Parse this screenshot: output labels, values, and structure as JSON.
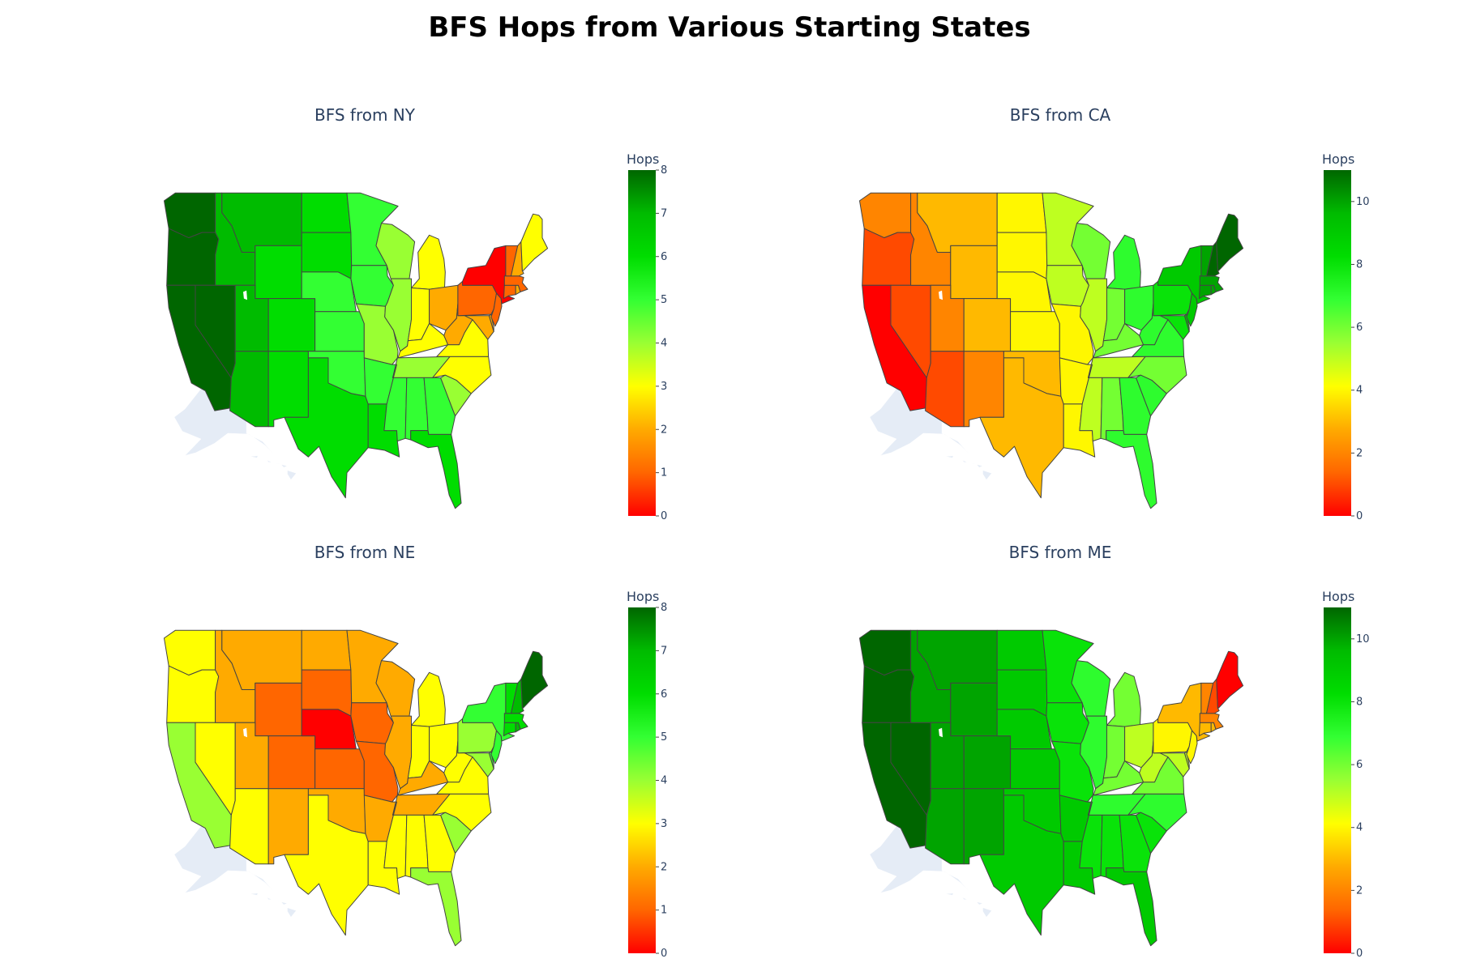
{
  "title": "BFS Hops from Various Starting States",
  "colorscale": [
    [
      0,
      "#ff0000"
    ],
    [
      0.125,
      "#ff6600"
    ],
    [
      0.25,
      "#ffaa00"
    ],
    [
      0.375,
      "#ffff00"
    ],
    [
      0.5,
      "#99ff33"
    ],
    [
      0.625,
      "#33ff33"
    ],
    [
      0.75,
      "#00dd00"
    ],
    [
      0.875,
      "#00bb00"
    ],
    [
      1,
      "#006600"
    ]
  ],
  "chart_data": [
    {
      "type": "choropleth",
      "title": "BFS from NY",
      "start": "NY",
      "colorbar": {
        "title": "Hops",
        "range": [
          0,
          8
        ],
        "ticks": [
          "0",
          "1",
          "2",
          "3",
          "4",
          "5",
          "6",
          "7",
          "8"
        ]
      },
      "values": {
        "WA": 8,
        "OR": 8,
        "CA": 8,
        "NV": 8,
        "ID": 7,
        "MT": 7,
        "WY": 6,
        "UT": 7,
        "AZ": 7,
        "CO": 6,
        "NM": 6,
        "ND": 6,
        "SD": 6,
        "NE": 5,
        "KS": 5,
        "OK": 5,
        "TX": 6,
        "MN": 5,
        "IA": 5,
        "MO": 4,
        "AR": 5,
        "LA": 6,
        "WI": 4,
        "IL": 4,
        "MI": 3,
        "IN": 3,
        "OH": 2,
        "KY": 3,
        "TN": 4,
        "MS": 5,
        "AL": 5,
        "GA": 5,
        "FL": 6,
        "SC": 4,
        "NC": 3,
        "VA": 3,
        "WV": 2,
        "PA": 1,
        "NY": 0,
        "NJ": 1,
        "DE": 2,
        "MD": 2,
        "CT": 1,
        "RI": 2,
        "MA": 1,
        "VT": 1,
        "NH": 2,
        "ME": 3
      }
    },
    {
      "type": "choropleth",
      "title": "BFS from CA",
      "start": "CA",
      "colorbar": {
        "title": "Hops",
        "range": [
          0,
          11
        ],
        "ticks": [
          "0",
          "2",
          "4",
          "6",
          "8",
          "10"
        ]
      },
      "values": {
        "CA": 0,
        "OR": 1,
        "NV": 1,
        "AZ": 1,
        "WA": 2,
        "ID": 2,
        "UT": 2,
        "NM": 2,
        "MT": 3,
        "WY": 3,
        "CO": 3,
        "OK": 3,
        "TX": 3,
        "ND": 4,
        "SD": 4,
        "NE": 4,
        "KS": 4,
        "MN": 5,
        "IA": 5,
        "MO": 4,
        "AR": 4,
        "LA": 4,
        "WI": 6,
        "IL": 5,
        "MS": 5,
        "TN": 5,
        "KY": 6,
        "IN": 6,
        "MI": 7,
        "OH": 7,
        "AL": 6,
        "GA": 7,
        "FL": 7,
        "SC": 7,
        "NC": 6,
        "VA": 7,
        "WV": 7,
        "PA": 8,
        "MD": 8,
        "DE": 9,
        "NJ": 9,
        "NY": 9,
        "CT": 10,
        "RI": 10,
        "MA": 10,
        "VT": 10,
        "NH": 11,
        "ME": 11
      }
    },
    {
      "type": "choropleth",
      "title": "BFS from NE",
      "start": "NE",
      "colorbar": {
        "title": "Hops",
        "range": [
          0,
          8
        ],
        "ticks": [
          "0",
          "1",
          "2",
          "3",
          "4",
          "5",
          "6",
          "7",
          "8"
        ]
      },
      "values": {
        "NE": 0,
        "SD": 1,
        "WY": 1,
        "CO": 1,
        "KS": 1,
        "IA": 1,
        "MO": 1,
        "ND": 2,
        "MT": 2,
        "ID": 2,
        "UT": 2,
        "NM": 2,
        "OK": 2,
        "AR": 2,
        "MN": 2,
        "WI": 2,
        "IL": 2,
        "KY": 2,
        "TN": 2,
        "WA": 3,
        "OR": 3,
        "NV": 3,
        "AZ": 3,
        "TX": 3,
        "LA": 3,
        "MS": 3,
        "AL": 3,
        "GA": 3,
        "IN": 3,
        "MI": 3,
        "OH": 3,
        "WV": 3,
        "VA": 3,
        "NC": 3,
        "CA": 4,
        "SC": 4,
        "FL": 4,
        "PA": 4,
        "MD": 4,
        "DE": 5,
        "NJ": 5,
        "NY": 5,
        "CT": 6,
        "MA": 6,
        "RI": 7,
        "VT": 6,
        "NH": 7,
        "ME": 8
      }
    },
    {
      "type": "choropleth",
      "title": "BFS from ME",
      "start": "ME",
      "colorbar": {
        "title": "Hops",
        "range": [
          0,
          11
        ],
        "ticks": [
          "0",
          "2",
          "4",
          "6",
          "8",
          "10"
        ]
      },
      "values": {
        "ME": 0,
        "NH": 1,
        "VT": 2,
        "MA": 2,
        "CT": 3,
        "RI": 3,
        "NY": 3,
        "NJ": 4,
        "PA": 4,
        "DE": 5,
        "MD": 5,
        "OH": 5,
        "WV": 5,
        "VA": 6,
        "MI": 6,
        "IN": 6,
        "KY": 6,
        "NC": 7,
        "TN": 7,
        "IL": 7,
        "WI": 7,
        "SC": 8,
        "GA": 8,
        "AL": 8,
        "MS": 8,
        "MO": 8,
        "IA": 8,
        "MN": 8,
        "FL": 9,
        "LA": 9,
        "AR": 9,
        "KS": 9,
        "NE": 9,
        "SD": 9,
        "ND": 9,
        "OK": 9,
        "TX": 9,
        "CO": 10,
        "WY": 10,
        "MT": 10,
        "NM": 10,
        "UT": 10,
        "ID": 10,
        "AZ": 10,
        "NV": 11,
        "OR": 11,
        "WA": 11,
        "CA": 11
      }
    }
  ]
}
